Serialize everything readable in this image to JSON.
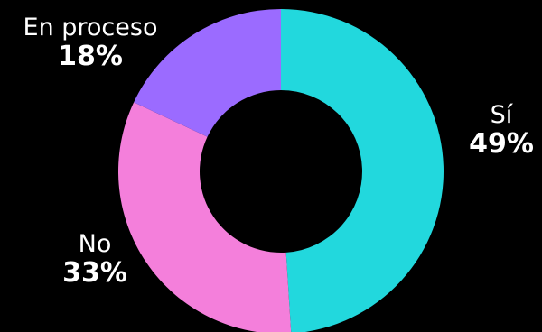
{
  "chart_data": {
    "type": "pie",
    "donut": true,
    "title": "",
    "legend": "none",
    "slices": [
      {
        "label": "Sí",
        "value": 49,
        "value_label": "49%",
        "color": "#22d8dd"
      },
      {
        "label": "No",
        "value": 33,
        "value_label": "33%",
        "color": "#f47fdb"
      },
      {
        "label": "En proceso",
        "value": 18,
        "value_label": "18%",
        "color": "#9b6bff"
      }
    ]
  },
  "colors": {
    "background": "#000000",
    "label_text": "#ffffff"
  }
}
